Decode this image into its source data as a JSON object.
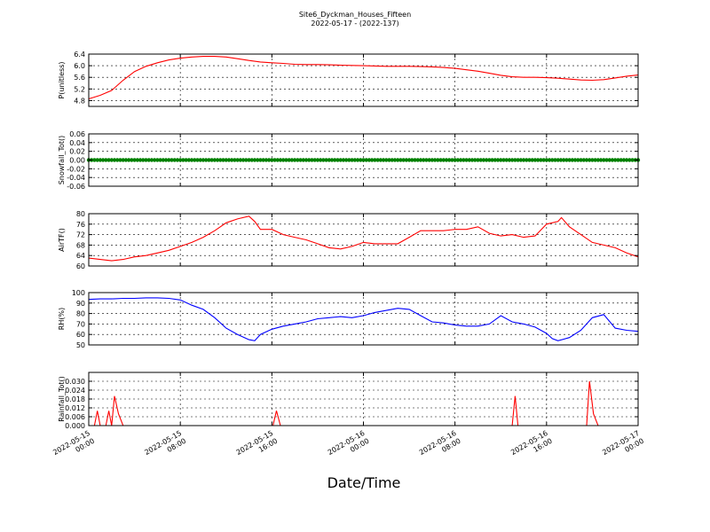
{
  "figure": {
    "title": "Site6_Dyckman_Houses_Fifteen",
    "subtitle": "2022-05-17 - (2022-137)",
    "xlabel": "Date/Time"
  },
  "chart_data": {
    "type": "line",
    "x_axis": {
      "range": [
        "2022-05-15 00:00",
        "2022-05-17 00:00"
      ],
      "ticks": [
        {
          "line1": "2022-05-15",
          "line2": "00:00"
        },
        {
          "line1": "2022-05-15",
          "line2": "08:00"
        },
        {
          "line1": "2022-05-15",
          "line2": "16:00"
        },
        {
          "line1": "2022-05-16",
          "line2": "00:00"
        },
        {
          "line1": "2022-05-16",
          "line2": "08:00"
        },
        {
          "line1": "2022-05-16",
          "line2": "16:00"
        },
        {
          "line1": "2022-05-17",
          "line2": "00:00"
        }
      ]
    },
    "panels": [
      {
        "ylabel": "P(unitless)",
        "ylim": [
          4.6,
          6.4
        ],
        "yticks": [
          "4.8",
          "5.2",
          "5.6",
          "6.0",
          "6.4"
        ],
        "ytick_values": [
          4.8,
          5.2,
          5.6,
          6.0,
          6.4
        ],
        "color": "#ff0000",
        "hours": [
          0,
          1,
          2,
          3,
          4,
          5,
          6,
          7,
          8,
          9,
          10,
          11,
          12,
          13,
          14,
          15,
          16,
          17,
          18,
          19,
          20,
          21,
          22,
          23,
          24,
          25,
          26,
          27,
          28,
          29,
          30,
          31,
          32,
          33,
          34,
          35,
          36,
          37,
          38,
          39,
          40,
          41,
          42,
          43,
          44,
          45,
          46,
          47,
          48
        ],
        "values": [
          4.86,
          4.98,
          5.15,
          5.5,
          5.8,
          5.98,
          6.1,
          6.2,
          6.26,
          6.3,
          6.32,
          6.32,
          6.3,
          6.24,
          6.18,
          6.13,
          6.1,
          6.08,
          6.05,
          6.04,
          6.04,
          6.03,
          6.02,
          6.01,
          6.0,
          5.99,
          5.98,
          5.98,
          5.98,
          5.97,
          5.96,
          5.94,
          5.91,
          5.86,
          5.81,
          5.74,
          5.67,
          5.62,
          5.6,
          5.6,
          5.59,
          5.57,
          5.54,
          5.51,
          5.5,
          5.52,
          5.58,
          5.64,
          5.68
        ]
      },
      {
        "ylabel": "Snowfall_Tot()",
        "ylim": [
          -0.06,
          0.06
        ],
        "yticks": [
          "-0.06",
          "-0.04",
          "-0.02",
          "0.00",
          "0.02",
          "0.04",
          "0.06"
        ],
        "ytick_values": [
          -0.06,
          -0.04,
          -0.02,
          0.0,
          0.02,
          0.04,
          0.06
        ],
        "color": "#008000",
        "constant_value": 0.0,
        "markers": true
      },
      {
        "ylabel": "AirTF()",
        "ylim": [
          60,
          80
        ],
        "yticks": [
          "60",
          "64",
          "68",
          "72",
          "76",
          "80"
        ],
        "ytick_values": [
          60,
          64,
          68,
          72,
          76,
          80
        ],
        "color": "#ff0000",
        "hours": [
          0,
          1,
          2,
          3,
          4,
          5,
          6,
          7,
          8,
          9,
          10,
          11,
          12,
          13,
          14,
          14.5,
          15,
          16,
          17,
          18,
          19,
          20,
          21,
          22,
          23,
          24,
          25,
          26,
          27,
          28,
          29,
          30,
          31,
          32,
          33,
          34,
          35,
          36,
          37,
          38,
          39,
          40,
          41,
          41.3,
          42,
          43,
          44,
          45,
          46,
          47,
          48
        ],
        "values": [
          63,
          62.5,
          62,
          62.5,
          63.5,
          64,
          65,
          66,
          67.5,
          69,
          71,
          73.5,
          76.5,
          78,
          79,
          77,
          74,
          74,
          72,
          71,
          70,
          68.5,
          67,
          66.5,
          67.5,
          69,
          68.5,
          68.5,
          68.5,
          71,
          73.5,
          73.5,
          73.5,
          74,
          74,
          75,
          72.5,
          71.5,
          72,
          71,
          71.5,
          76,
          77,
          78.5,
          75,
          72,
          69,
          68,
          67,
          65,
          63.5
        ]
      },
      {
        "ylabel": "RH(%)",
        "ylim": [
          50,
          100
        ],
        "yticks": [
          "50",
          "60",
          "70",
          "80",
          "90",
          "100"
        ],
        "ytick_values": [
          50,
          60,
          70,
          80,
          90,
          100
        ],
        "color": "#0000ff",
        "hours": [
          0,
          1,
          2,
          3,
          4,
          5,
          6,
          7,
          8,
          9,
          10,
          11,
          12,
          13,
          14,
          14.5,
          15,
          16,
          17,
          18,
          19,
          20,
          21,
          22,
          23,
          24,
          25,
          26,
          27,
          28,
          29,
          30,
          31,
          32,
          33,
          34,
          35,
          36,
          37,
          38,
          39,
          40,
          40.5,
          41,
          42,
          43,
          44,
          45,
          46,
          47,
          48
        ],
        "values": [
          93.5,
          94,
          94,
          94.5,
          94.5,
          95,
          95,
          94.5,
          93,
          88,
          84,
          76,
          66,
          60,
          55,
          54,
          60,
          65,
          68,
          70,
          72,
          75,
          76,
          77,
          76,
          78,
          81,
          83,
          85,
          84,
          78,
          72,
          71,
          69,
          68,
          68,
          70,
          78,
          72,
          70,
          67,
          61,
          56,
          54,
          57,
          64,
          76,
          79,
          66,
          64,
          63
        ]
      },
      {
        "ylabel": "Rainfall_Tot()",
        "ylim": [
          0,
          0.036
        ],
        "yticks": [
          "0.000",
          "0.006",
          "0.012",
          "0.018",
          "0.024",
          "0.030"
        ],
        "ytick_values": [
          0.0,
          0.006,
          0.012,
          0.018,
          0.024,
          0.03
        ],
        "color": "#ff0000",
        "hours": [
          0,
          0.5,
          0.75,
          1.0,
          1.5,
          1.75,
          2.0,
          2.25,
          2.6,
          3.0,
          16.0,
          16.1,
          16.4,
          16.75,
          37,
          37.25,
          37.5,
          43,
          43.5,
          43.75,
          44.1,
          44.5,
          48
        ],
        "values": [
          0,
          0,
          0.01,
          0,
          0,
          0.01,
          0,
          0.02,
          0.008,
          0,
          0,
          0,
          0.01,
          0,
          0,
          0.02,
          0,
          0,
          0,
          0.03,
          0.008,
          0,
          0
        ]
      }
    ]
  }
}
